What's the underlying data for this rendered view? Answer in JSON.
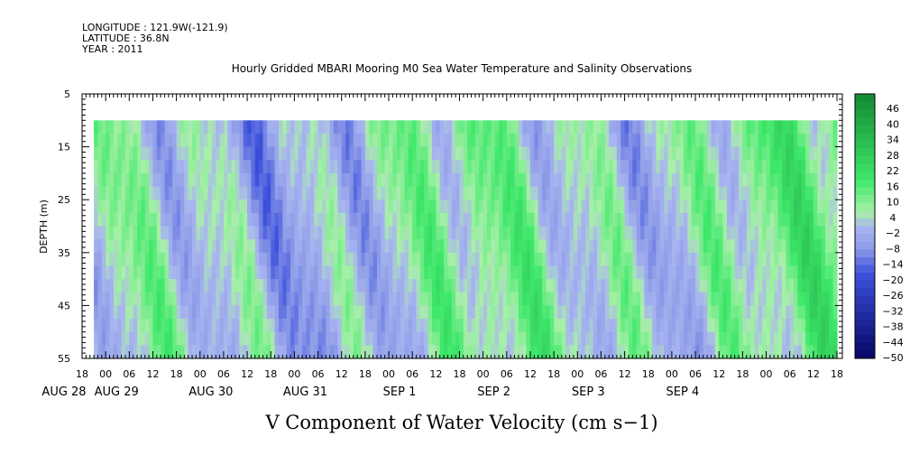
{
  "header": {
    "longitude": "LONGITUDE : 121.9W(-121.9)",
    "latitude": "LATITUDE : 36.8N",
    "year": "YEAR : 2011"
  },
  "chart_data": {
    "type": "heatmap",
    "title": "Hourly Gridded MBARI Mooring M0 Sea Water Temperature and Salinity Observations",
    "xlabel": "V Component of Water Velocity (cm s−1)",
    "ylabel": "DEPTH (m)",
    "ylim": [
      55,
      5
    ],
    "yticks": [
      5,
      15,
      25,
      35,
      45,
      55
    ],
    "xhour_ticks": [
      "18",
      "00",
      "06",
      "12",
      "18",
      "00",
      "06",
      "12",
      "18",
      "00",
      "06",
      "12",
      "18",
      "00",
      "06",
      "12",
      "18",
      "00",
      "06",
      "12",
      "18",
      "00",
      "06",
      "12",
      "18",
      "00",
      "06",
      "12",
      "18",
      "00",
      "06",
      "12",
      "18"
    ],
    "xdate_labels": [
      "AUG 28",
      "AUG 29",
      "AUG 30",
      "AUG 31",
      "SEP  1",
      "SEP  2",
      "SEP  3",
      "SEP  4"
    ],
    "colorbar_ticks": [
      "46",
      "40",
      "34",
      "28",
      "22",
      "16",
      "10",
      "4",
      "−2",
      "−8",
      "−14",
      "−20",
      "−26",
      "−32",
      "−38",
      "−44",
      "−50"
    ],
    "value_range": [
      -50,
      49
    ],
    "data_depth_range": [
      10,
      55
    ],
    "data_start_hour": 3,
    "colors": {
      "negative_light": "#a8b4f0",
      "negative_mid": "#8e9ce8",
      "positive_light": "#a8f0a8",
      "positive_mid": "#3ee86a",
      "positive_dark": "#148a34",
      "negative_dark": "#0a0a6e"
    }
  }
}
